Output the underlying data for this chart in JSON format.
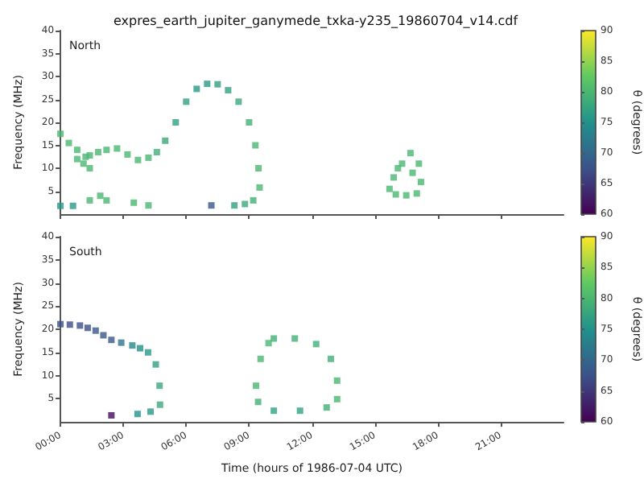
{
  "chart_data": [
    {
      "type": "scatter",
      "title": "expres_earth_jupiter_ganymede_txka-y235_19860704_v14.cdf",
      "ylabel": "Frequency (MHz)",
      "clabel": "θ (degrees)",
      "annotations": [
        "North"
      ],
      "marker": "square",
      "grid": false,
      "tick_labels": "y",
      "xlim": [
        0,
        24
      ],
      "xticks": [
        {
          "value": 0,
          "label": null
        },
        {
          "value": 3,
          "label": null
        },
        {
          "value": 6,
          "label": null
        },
        {
          "value": 9,
          "label": null
        },
        {
          "value": 12,
          "label": null
        },
        {
          "value": 15,
          "label": null
        },
        {
          "value": 18,
          "label": null
        },
        {
          "value": 21,
          "label": null
        }
      ],
      "ylim": [
        0,
        40
      ],
      "yticks": [
        5,
        10,
        15,
        20,
        25,
        30,
        35,
        40
      ],
      "clim": [
        60,
        90
      ],
      "cticks": [
        60,
        65,
        70,
        75,
        80,
        85,
        90
      ],
      "x": [
        0,
        0.4,
        0.8,
        1.2,
        1.4,
        0.8,
        1.1,
        1.4,
        1.8,
        2.2,
        2.7,
        3.2,
        3.7,
        4.2,
        4.6,
        5.0,
        5.5,
        6.0,
        6.5,
        7.0,
        7.5,
        8.0,
        8.5,
        9.0,
        9.3,
        9.45,
        9.5,
        9.2,
        8.8,
        8.3,
        7.2,
        4.2,
        3.5,
        2.2,
        1.9,
        1.4,
        0.6,
        0,
        15.7,
        15.9,
        16.3,
        16.7,
        17.1,
        17.2,
        17.0,
        16.5,
        16.0,
        16.1,
        16.8
      ],
      "values": [
        17.5,
        15.5,
        14,
        12.5,
        10,
        12,
        11,
        12.8,
        13.5,
        14,
        14.3,
        13,
        11.8,
        12.3,
        13.5,
        16,
        20,
        24.5,
        27.3,
        28.4,
        28.3,
        27,
        24.5,
        20,
        15,
        10,
        5.8,
        3,
        2.2,
        1.9,
        1.9,
        1.9,
        2.5,
        3,
        4,
        3,
        1.8,
        1.8,
        5.5,
        8,
        11,
        13.3,
        11,
        7,
        4.5,
        4.1,
        4.3,
        10,
        9
      ],
      "cvalues": [
        80,
        80,
        80,
        80,
        80,
        80,
        80,
        80,
        80,
        80,
        80,
        80,
        80,
        80,
        79,
        78,
        77,
        77,
        76,
        76,
        77,
        77,
        78,
        79,
        80,
        80,
        80,
        79,
        78,
        77,
        68,
        80,
        80,
        80,
        80,
        80,
        76,
        76,
        80,
        80,
        80,
        80,
        80,
        80,
        80,
        80,
        80,
        80,
        80
      ]
    },
    {
      "type": "scatter",
      "xlabel": "Time (hours of 1986-07-04 UTC)",
      "ylabel": "Frequency (MHz)",
      "clabel": "θ (degrees)",
      "annotations": [
        "South"
      ],
      "marker": "square",
      "grid": false,
      "xlim": [
        0,
        24
      ],
      "xticks": [
        {
          "value": 0,
          "label": "00:00"
        },
        {
          "value": 3,
          "label": "03:00"
        },
        {
          "value": 6,
          "label": "06:00"
        },
        {
          "value": 9,
          "label": "09:00"
        },
        {
          "value": 12,
          "label": "12:00"
        },
        {
          "value": 15,
          "label": "15:00"
        },
        {
          "value": 18,
          "label": "18:00"
        },
        {
          "value": 21,
          "label": "21:00"
        }
      ],
      "ylim": [
        0,
        40
      ],
      "yticks": [
        5,
        10,
        15,
        20,
        25,
        30,
        35,
        40
      ],
      "clim": [
        60,
        90
      ],
      "cticks": [
        60,
        65,
        70,
        75,
        80,
        85,
        90
      ],
      "x": [
        0,
        0.45,
        0.93,
        1.3,
        1.68,
        2.05,
        2.43,
        2.9,
        3.43,
        3.8,
        4.18,
        4.55,
        4.73,
        4.75,
        4.3,
        3.68,
        2.43,
        10.18,
        11.18,
        12.2,
        12.9,
        13.2,
        13.2,
        12.7,
        11.43,
        10.18,
        9.43,
        9.33,
        9.55,
        9.93
      ],
      "values": [
        21.1,
        21,
        20.8,
        20.3,
        19.7,
        18.7,
        17.7,
        17.1,
        16.5,
        15.9,
        15,
        12.4,
        7.8,
        3.7,
        2.2,
        1.7,
        1.4,
        18,
        18,
        16.8,
        13.6,
        8.9,
        4.9,
        3.1,
        2.4,
        2.4,
        4.3,
        7.8,
        13.6,
        17
      ],
      "cvalues": [
        67,
        67,
        67,
        67,
        68,
        68,
        68,
        72,
        74,
        75,
        76,
        77,
        78,
        78,
        76,
        75,
        61,
        79,
        79,
        79,
        79,
        80,
        80,
        79,
        77,
        77,
        79,
        80,
        80,
        80
      ]
    }
  ]
}
